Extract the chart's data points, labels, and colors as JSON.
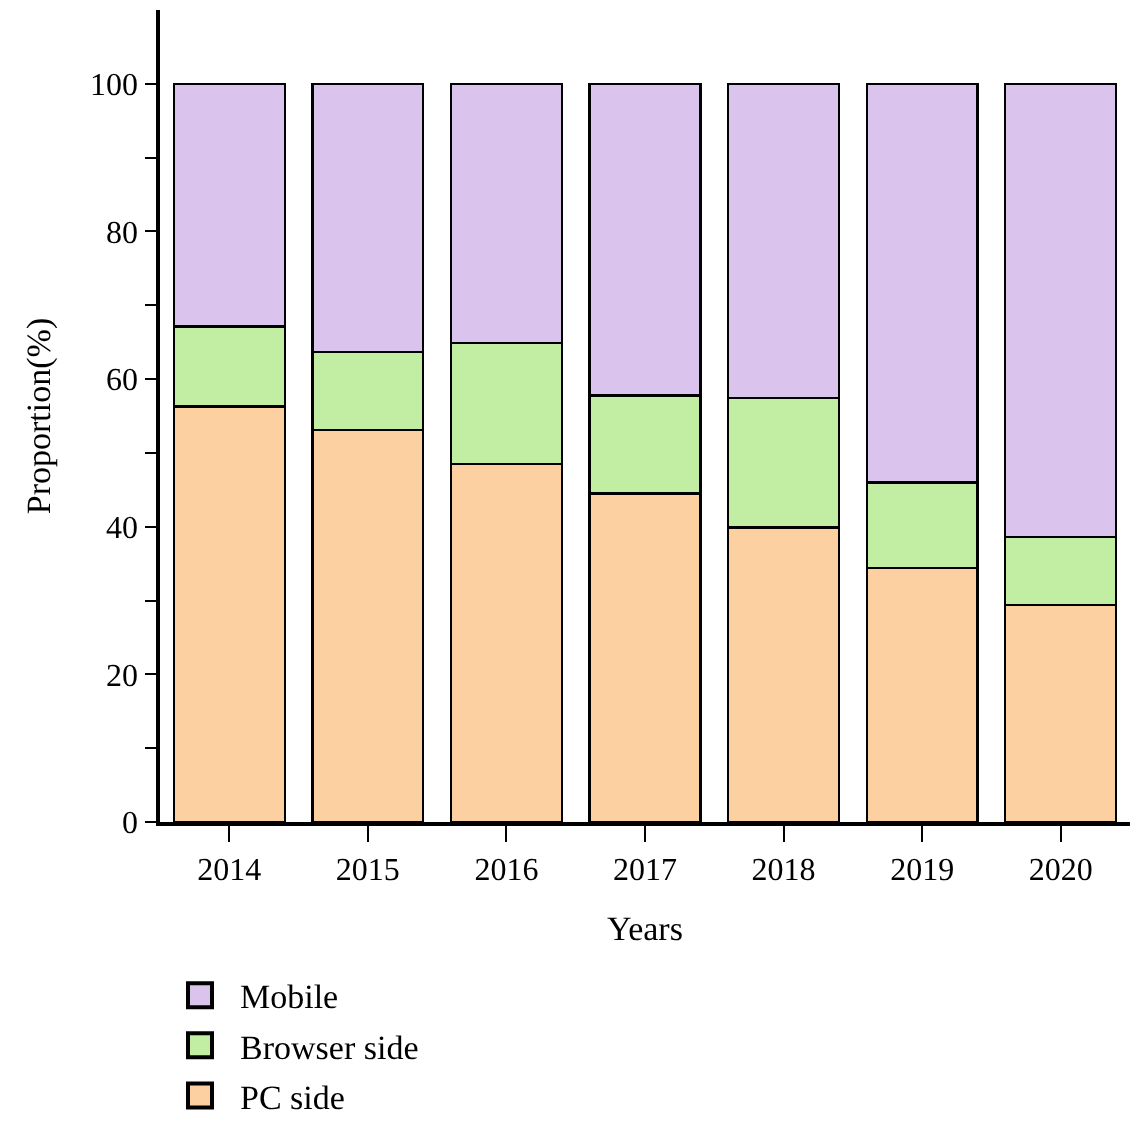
{
  "chart_data": {
    "type": "bar",
    "stacked": true,
    "xlabel": "Years",
    "ylabel": "Proportion(%)",
    "categories": [
      "2014",
      "2015",
      "2016",
      "2017",
      "2018",
      "2019",
      "2020"
    ],
    "series": [
      {
        "name": "PC side",
        "color": "#fdd0a2",
        "values": [
          56.3,
          53.1,
          48.5,
          44.5,
          39.9,
          34.4,
          29.4
        ]
      },
      {
        "name": "Browser side",
        "color": "#c2eea4",
        "values": [
          10.8,
          10.6,
          16.4,
          13.3,
          17.5,
          11.6,
          9.2
        ]
      },
      {
        "name": "Mobile",
        "color": "#dac4ee",
        "values": [
          32.9,
          36.3,
          35.1,
          42.2,
          42.6,
          54.0,
          61.4
        ]
      }
    ],
    "ylim": [
      0,
      110
    ],
    "yticks": [
      0,
      {
        "value": 10,
        "label": null
      },
      20,
      {
        "value": 30,
        "label": null
      },
      40,
      {
        "value": 50,
        "label": null
      },
      60,
      {
        "value": 70,
        "label": null
      },
      80,
      {
        "value": 90,
        "label": null
      },
      100
    ],
    "legend": "bottom left"
  }
}
